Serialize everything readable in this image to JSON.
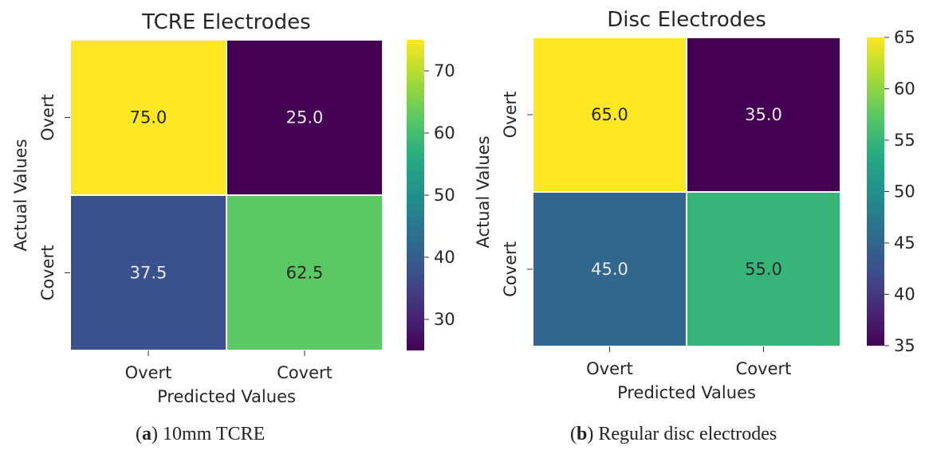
{
  "chart_data": [
    {
      "type": "heatmap",
      "title": "TCRE Electrodes",
      "xlabel": "Predicted Values",
      "ylabel": "Actual Values",
      "x_categories": [
        "Overt",
        "Covert"
      ],
      "y_categories": [
        "Overt",
        "Covert"
      ],
      "values": [
        [
          75.0,
          25.0
        ],
        [
          37.5,
          62.5
        ]
      ],
      "colormap": "viridis",
      "colorbar": {
        "min": 25,
        "max": 75,
        "ticks": [
          30,
          40,
          50,
          60,
          70
        ]
      },
      "caption": {
        "label": "a",
        "text": "10mm TCRE"
      }
    },
    {
      "type": "heatmap",
      "title": "Disc Electrodes",
      "xlabel": "Predicted Values",
      "ylabel": "Actual Values",
      "x_categories": [
        "Overt",
        "Covert"
      ],
      "y_categories": [
        "Overt",
        "Covert"
      ],
      "values": [
        [
          65.0,
          35.0
        ],
        [
          45.0,
          55.0
        ]
      ],
      "colormap": "viridis",
      "colorbar": {
        "min": 35,
        "max": 65,
        "ticks": [
          35,
          40,
          45,
          50,
          55,
          60,
          65
        ]
      },
      "caption": {
        "label": "b",
        "text": "Regular disc electrodes"
      }
    }
  ]
}
